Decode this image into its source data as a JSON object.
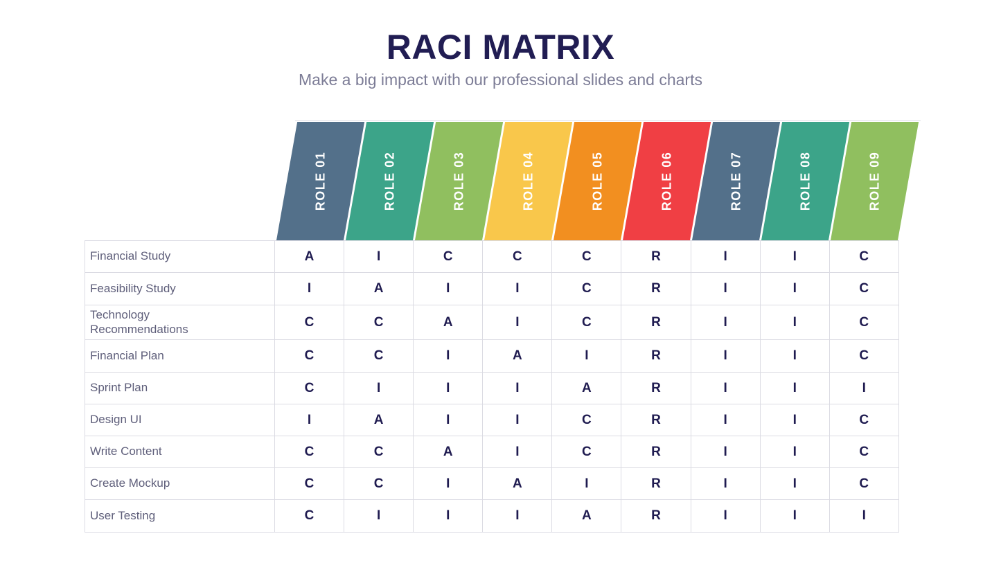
{
  "header": {
    "title": "RACI MATRIX",
    "subtitle": "Make a big impact with our professional slides and charts"
  },
  "colors": {
    "title": "#211D53",
    "subtitle": "#7C7C96",
    "row_label": "#5E5E7A",
    "cell_letter": "#1F1B50",
    "grid_line": "#DBDBE3",
    "header_text": "#FFFFFF"
  },
  "roles": [
    {
      "label": "ROLE 01",
      "color": "#53708A"
    },
    {
      "label": "ROLE 02",
      "color": "#3CA489"
    },
    {
      "label": "ROLE 03",
      "color": "#90BF5F"
    },
    {
      "label": "ROLE 04",
      "color": "#F9C74B"
    },
    {
      "label": "ROLE 05",
      "color": "#F28F20"
    },
    {
      "label": "ROLE 06",
      "color": "#F03F44"
    },
    {
      "label": "ROLE 07",
      "color": "#53708A"
    },
    {
      "label": "ROLE 08",
      "color": "#3CA489"
    },
    {
      "label": "ROLE 09",
      "color": "#90BF5F"
    }
  ],
  "tasks": [
    {
      "label": "Financial Study",
      "values": [
        "A",
        "I",
        "C",
        "C",
        "C",
        "R",
        "I",
        "I",
        "C"
      ]
    },
    {
      "label": "Feasibility Study",
      "values": [
        "I",
        "A",
        "I",
        "I",
        "C",
        "R",
        "I",
        "I",
        "C"
      ]
    },
    {
      "label": "Technology Recommendations",
      "values": [
        "C",
        "C",
        "A",
        "I",
        "C",
        "R",
        "I",
        "I",
        "C"
      ]
    },
    {
      "label": "Financial Plan",
      "values": [
        "C",
        "C",
        "I",
        "A",
        "I",
        "R",
        "I",
        "I",
        "C"
      ]
    },
    {
      "label": "Sprint Plan",
      "values": [
        "C",
        "I",
        "I",
        "I",
        "A",
        "R",
        "I",
        "I",
        "I"
      ]
    },
    {
      "label": "Design UI",
      "values": [
        "I",
        "A",
        "I",
        "I",
        "C",
        "R",
        "I",
        "I",
        "C"
      ]
    },
    {
      "label": "Write Content",
      "values": [
        "C",
        "C",
        "A",
        "I",
        "C",
        "R",
        "I",
        "I",
        "C"
      ]
    },
    {
      "label": "Create Mockup",
      "values": [
        "C",
        "C",
        "I",
        "A",
        "I",
        "R",
        "I",
        "I",
        "C"
      ]
    },
    {
      "label": "User Testing",
      "values": [
        "C",
        "I",
        "I",
        "I",
        "A",
        "R",
        "I",
        "I",
        "I"
      ]
    }
  ],
  "chart_data": {
    "type": "table",
    "title": "RACI MATRIX",
    "subtitle": "Make a big impact with our professional slides and charts",
    "columns": [
      "ROLE 01",
      "ROLE 02",
      "ROLE 03",
      "ROLE 04",
      "ROLE 05",
      "ROLE 06",
      "ROLE 07",
      "ROLE 08",
      "ROLE 09"
    ],
    "rows": [
      "Financial Study",
      "Feasibility Study",
      "Technology Recommendations",
      "Financial Plan",
      "Sprint Plan",
      "Design UI",
      "Write Content",
      "Create Mockup",
      "User Testing"
    ],
    "values": [
      [
        "A",
        "I",
        "C",
        "C",
        "C",
        "R",
        "I",
        "I",
        "C"
      ],
      [
        "I",
        "A",
        "I",
        "I",
        "C",
        "R",
        "I",
        "I",
        "C"
      ],
      [
        "C",
        "C",
        "A",
        "I",
        "C",
        "R",
        "I",
        "I",
        "C"
      ],
      [
        "C",
        "C",
        "I",
        "A",
        "I",
        "R",
        "I",
        "I",
        "C"
      ],
      [
        "C",
        "I",
        "I",
        "I",
        "A",
        "R",
        "I",
        "I",
        "I"
      ],
      [
        "I",
        "A",
        "I",
        "I",
        "C",
        "R",
        "I",
        "I",
        "C"
      ],
      [
        "C",
        "C",
        "A",
        "I",
        "C",
        "R",
        "I",
        "I",
        "C"
      ],
      [
        "C",
        "C",
        "I",
        "A",
        "I",
        "R",
        "I",
        "I",
        "C"
      ],
      [
        "C",
        "I",
        "I",
        "I",
        "A",
        "R",
        "I",
        "I",
        "I"
      ]
    ],
    "column_header_colors": [
      "#53708A",
      "#3CA489",
      "#90BF5F",
      "#F9C74B",
      "#F28F20",
      "#F03F44",
      "#53708A",
      "#3CA489",
      "#90BF5F"
    ],
    "layout": {
      "column_headers_style": "slanted-parallelogram",
      "grid": true,
      "legend": false
    }
  }
}
